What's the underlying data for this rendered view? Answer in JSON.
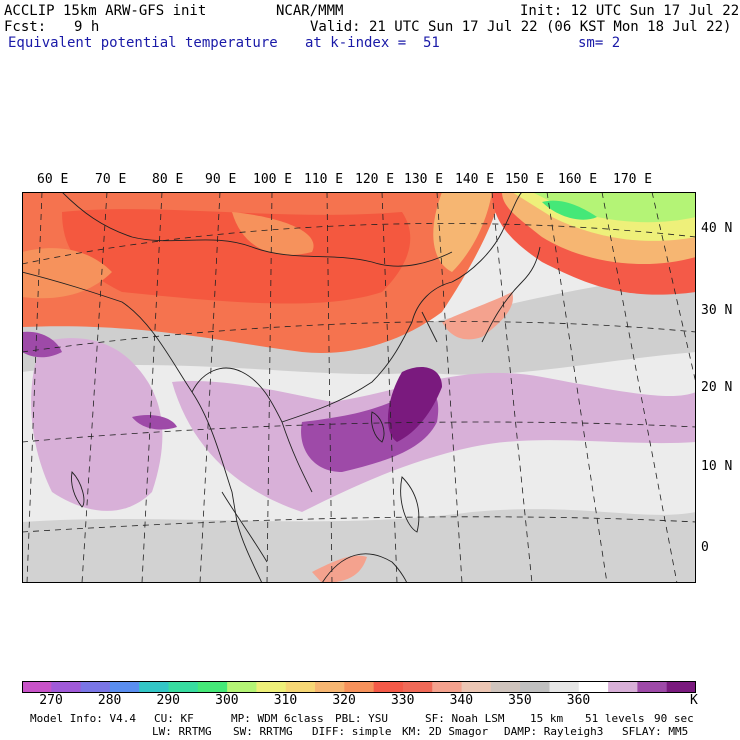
{
  "header": {
    "model": "ACCLIP 15km ARW-GFS init",
    "org": "NCAR/MMM",
    "init": "Init: 12 UTC Sun 17 Jul 22",
    "fcst_label": "Fcst:",
    "fcst_value": "9 h",
    "valid": "Valid: 21 UTC Sun 17 Jul 22 (06 KST Mon 18 Jul 22)",
    "field": "Equivalent potential temperature",
    "level": "at k-index =  51",
    "smooth": "sm= 2"
  },
  "map": {
    "lon_labels": [
      "60 E",
      "70 E",
      "80 E",
      "90 E",
      "100 E",
      "110 E",
      "120 E",
      "130 E",
      "140 E",
      "150 E",
      "160 E",
      "170 E"
    ],
    "lat_labels": [
      "40 N",
      "30 N",
      "20 N",
      "10 N",
      "0"
    ]
  },
  "colorbar": {
    "colors": [
      "#c853c8",
      "#a05ad8",
      "#7a76e6",
      "#5a8ef0",
      "#33c6c6",
      "#38dca0",
      "#45e878",
      "#b4f476",
      "#eef07a",
      "#f6d776",
      "#f6b672",
      "#f6925c",
      "#f45a48",
      "#f06a58",
      "#f4a28e",
      "#ecc6b4",
      "#cfc4bd",
      "#c0c0c0",
      "#e6e6e6",
      "#ffffff",
      "#d8b0d8",
      "#9e4aa8",
      "#7a1a7e"
    ],
    "labels": [
      "270",
      "280",
      "290",
      "300",
      "310",
      "320",
      "330",
      "340",
      "350",
      "360"
    ],
    "unit": "K"
  },
  "footer": {
    "line1": [
      "Model Info: V4.4",
      "CU: KF",
      "MP: WDM 6class",
      "PBL: YSU",
      "SF: Noah LSM",
      "15 km",
      "51 levels",
      "90 sec"
    ],
    "line2": [
      "LW: RRTMG",
      "SW: RRTMG",
      "DIFF: simple",
      "KM: 2D Smagor",
      "DAMP: Rayleigh3",
      "SFLAY: MM5"
    ]
  }
}
